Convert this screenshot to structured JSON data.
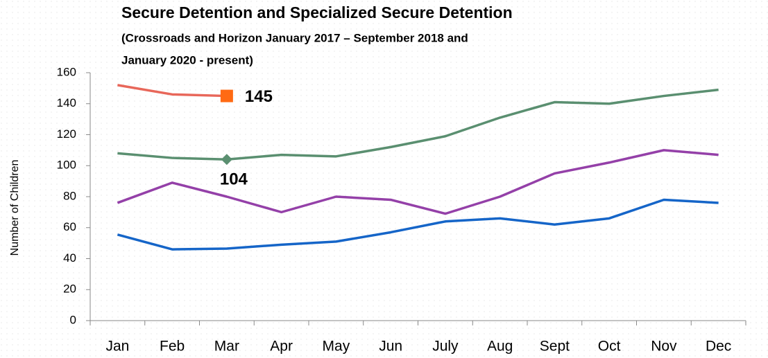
{
  "chart_data": {
    "type": "line",
    "title": "Secure Detention and Specialized Secure Detention",
    "subtitle": [
      "(Crossroads and Horizon January  2017 – September 2018 and",
      "January 2020 - present)"
    ],
    "y_label": "Number of Children",
    "categories": [
      "Jan",
      "Feb",
      "Mar",
      "Apr",
      "May",
      "Jun",
      "July",
      "Aug",
      "Sept",
      "Oct",
      "Nov",
      "Dec"
    ],
    "series": [
      {
        "color": "#e8675a",
        "marker": "square",
        "marker_color": "#ff6a13",
        "label_side": "right",
        "values": [
          152,
          146,
          145,
          null,
          null,
          null,
          null,
          null,
          null,
          null,
          null,
          null
        ],
        "value_labels": [
          null,
          null,
          "145",
          null,
          null,
          null,
          null,
          null,
          null,
          null,
          null,
          null
        ]
      },
      {
        "color": "#5a8f70",
        "marker": "diamond",
        "marker_color": "#5a8f70",
        "label_side": "below",
        "values": [
          108,
          105,
          104,
          107,
          106,
          112,
          119,
          131,
          141,
          140,
          145,
          149
        ],
        "value_labels": [
          null,
          null,
          "104",
          null,
          null,
          null,
          null,
          null,
          null,
          null,
          null,
          null
        ]
      },
      {
        "color": "#9440a8",
        "values": [
          76,
          89,
          80,
          70,
          80,
          78,
          69,
          80,
          95,
          102,
          110,
          107
        ]
      },
      {
        "color": "#1565c8",
        "values": [
          55.5,
          46,
          46.5,
          49,
          51,
          57,
          64,
          66,
          62,
          66,
          78,
          76
        ]
      }
    ],
    "ylim": [
      0,
      160
    ],
    "yticks": [
      0,
      20,
      40,
      60,
      80,
      100,
      120,
      140,
      160
    ]
  }
}
